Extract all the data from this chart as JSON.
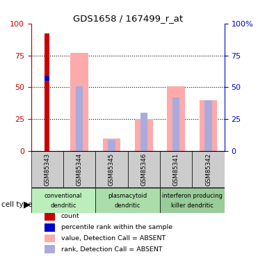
{
  "title": "GDS1658 / 167499_r_at",
  "samples": [
    "GSM85343",
    "GSM85344",
    "GSM85345",
    "GSM85346",
    "GSM85341",
    "GSM85342"
  ],
  "count_values": [
    92,
    0,
    0,
    0,
    0,
    0
  ],
  "percentile_rank_values": [
    57,
    0,
    0,
    0,
    0,
    0
  ],
  "value_absent": [
    0,
    77,
    10,
    25,
    51,
    40
  ],
  "rank_absent": [
    0,
    51,
    9,
    30,
    42,
    40
  ],
  "cell_types": [
    {
      "label": "conventional\ndendritic",
      "start": 0,
      "end": 2,
      "color": "#bbeebb"
    },
    {
      "label": "plasmacytoid\ndendritic",
      "start": 2,
      "end": 4,
      "color": "#aaddaa"
    },
    {
      "label": "interferon producing\nkiller dendritic",
      "start": 4,
      "end": 6,
      "color": "#99cc99"
    }
  ],
  "ylim": [
    0,
    100
  ],
  "yticks": [
    0,
    25,
    50,
    75,
    100
  ],
  "color_count": "#cc0000",
  "color_rank": "#0000cc",
  "color_value_absent": "#ffaaaa",
  "color_rank_absent": "#aaaadd",
  "left_axis_color": "#cc0000",
  "right_axis_color": "#0000cc",
  "legend_items": [
    {
      "label": "count",
      "color": "#cc0000"
    },
    {
      "label": "percentile rank within the sample",
      "color": "#0000cc"
    },
    {
      "label": "value, Detection Call = ABSENT",
      "color": "#ffaaaa"
    },
    {
      "label": "rank, Detection Call = ABSENT",
      "color": "#aaaadd"
    }
  ]
}
